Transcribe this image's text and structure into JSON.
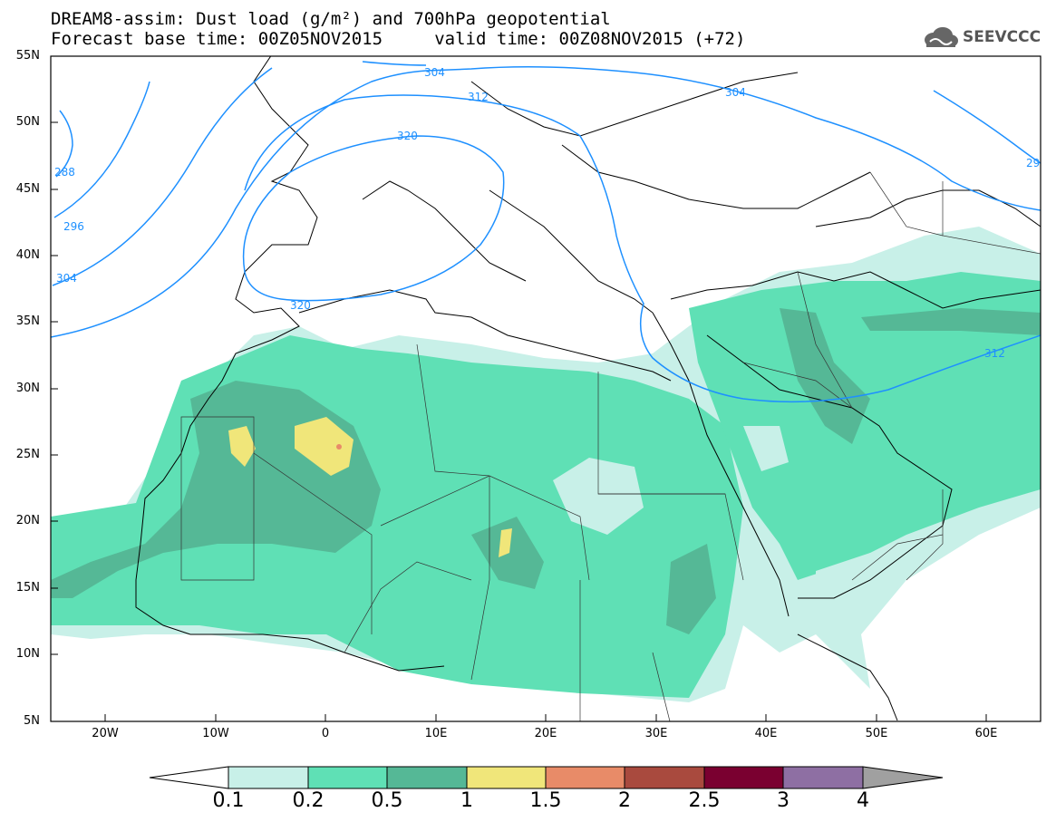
{
  "title": {
    "line1": "DREAM8-assim: Dust load (g/m²) and 700hPa geopotential",
    "line2": "Forecast base time: 00Z05NOV2015     valid time: 00Z08NOV2015 (+72)"
  },
  "logo": {
    "icon": "cloud-logo-icon",
    "text": "SEEVCCC"
  },
  "map": {
    "lat_labels": [
      "55N",
      "50N",
      "45N",
      "40N",
      "35N",
      "30N",
      "25N",
      "20N",
      "15N",
      "10N",
      "5N"
    ],
    "lon_labels": [
      "20W",
      "10W",
      "0",
      "10E",
      "20E",
      "30E",
      "40E",
      "50E",
      "60E"
    ],
    "contour_labels": [
      "288",
      "296",
      "304",
      "304",
      "304",
      "312",
      "312",
      "320",
      "320",
      "29"
    ],
    "contour_color": "#1e90ff"
  },
  "colorbar": {
    "labels": [
      "0.1",
      "0.2",
      "0.5",
      "1",
      "1.5",
      "2",
      "2.5",
      "3",
      "4"
    ],
    "colors": [
      "#ffffff",
      "#c8f0e8",
      "#5fe0b5",
      "#55b896",
      "#f0e67a",
      "#e88b68",
      "#a94a3e",
      "#7a0030",
      "#8e6fa3",
      "#a0a0a0"
    ]
  }
}
